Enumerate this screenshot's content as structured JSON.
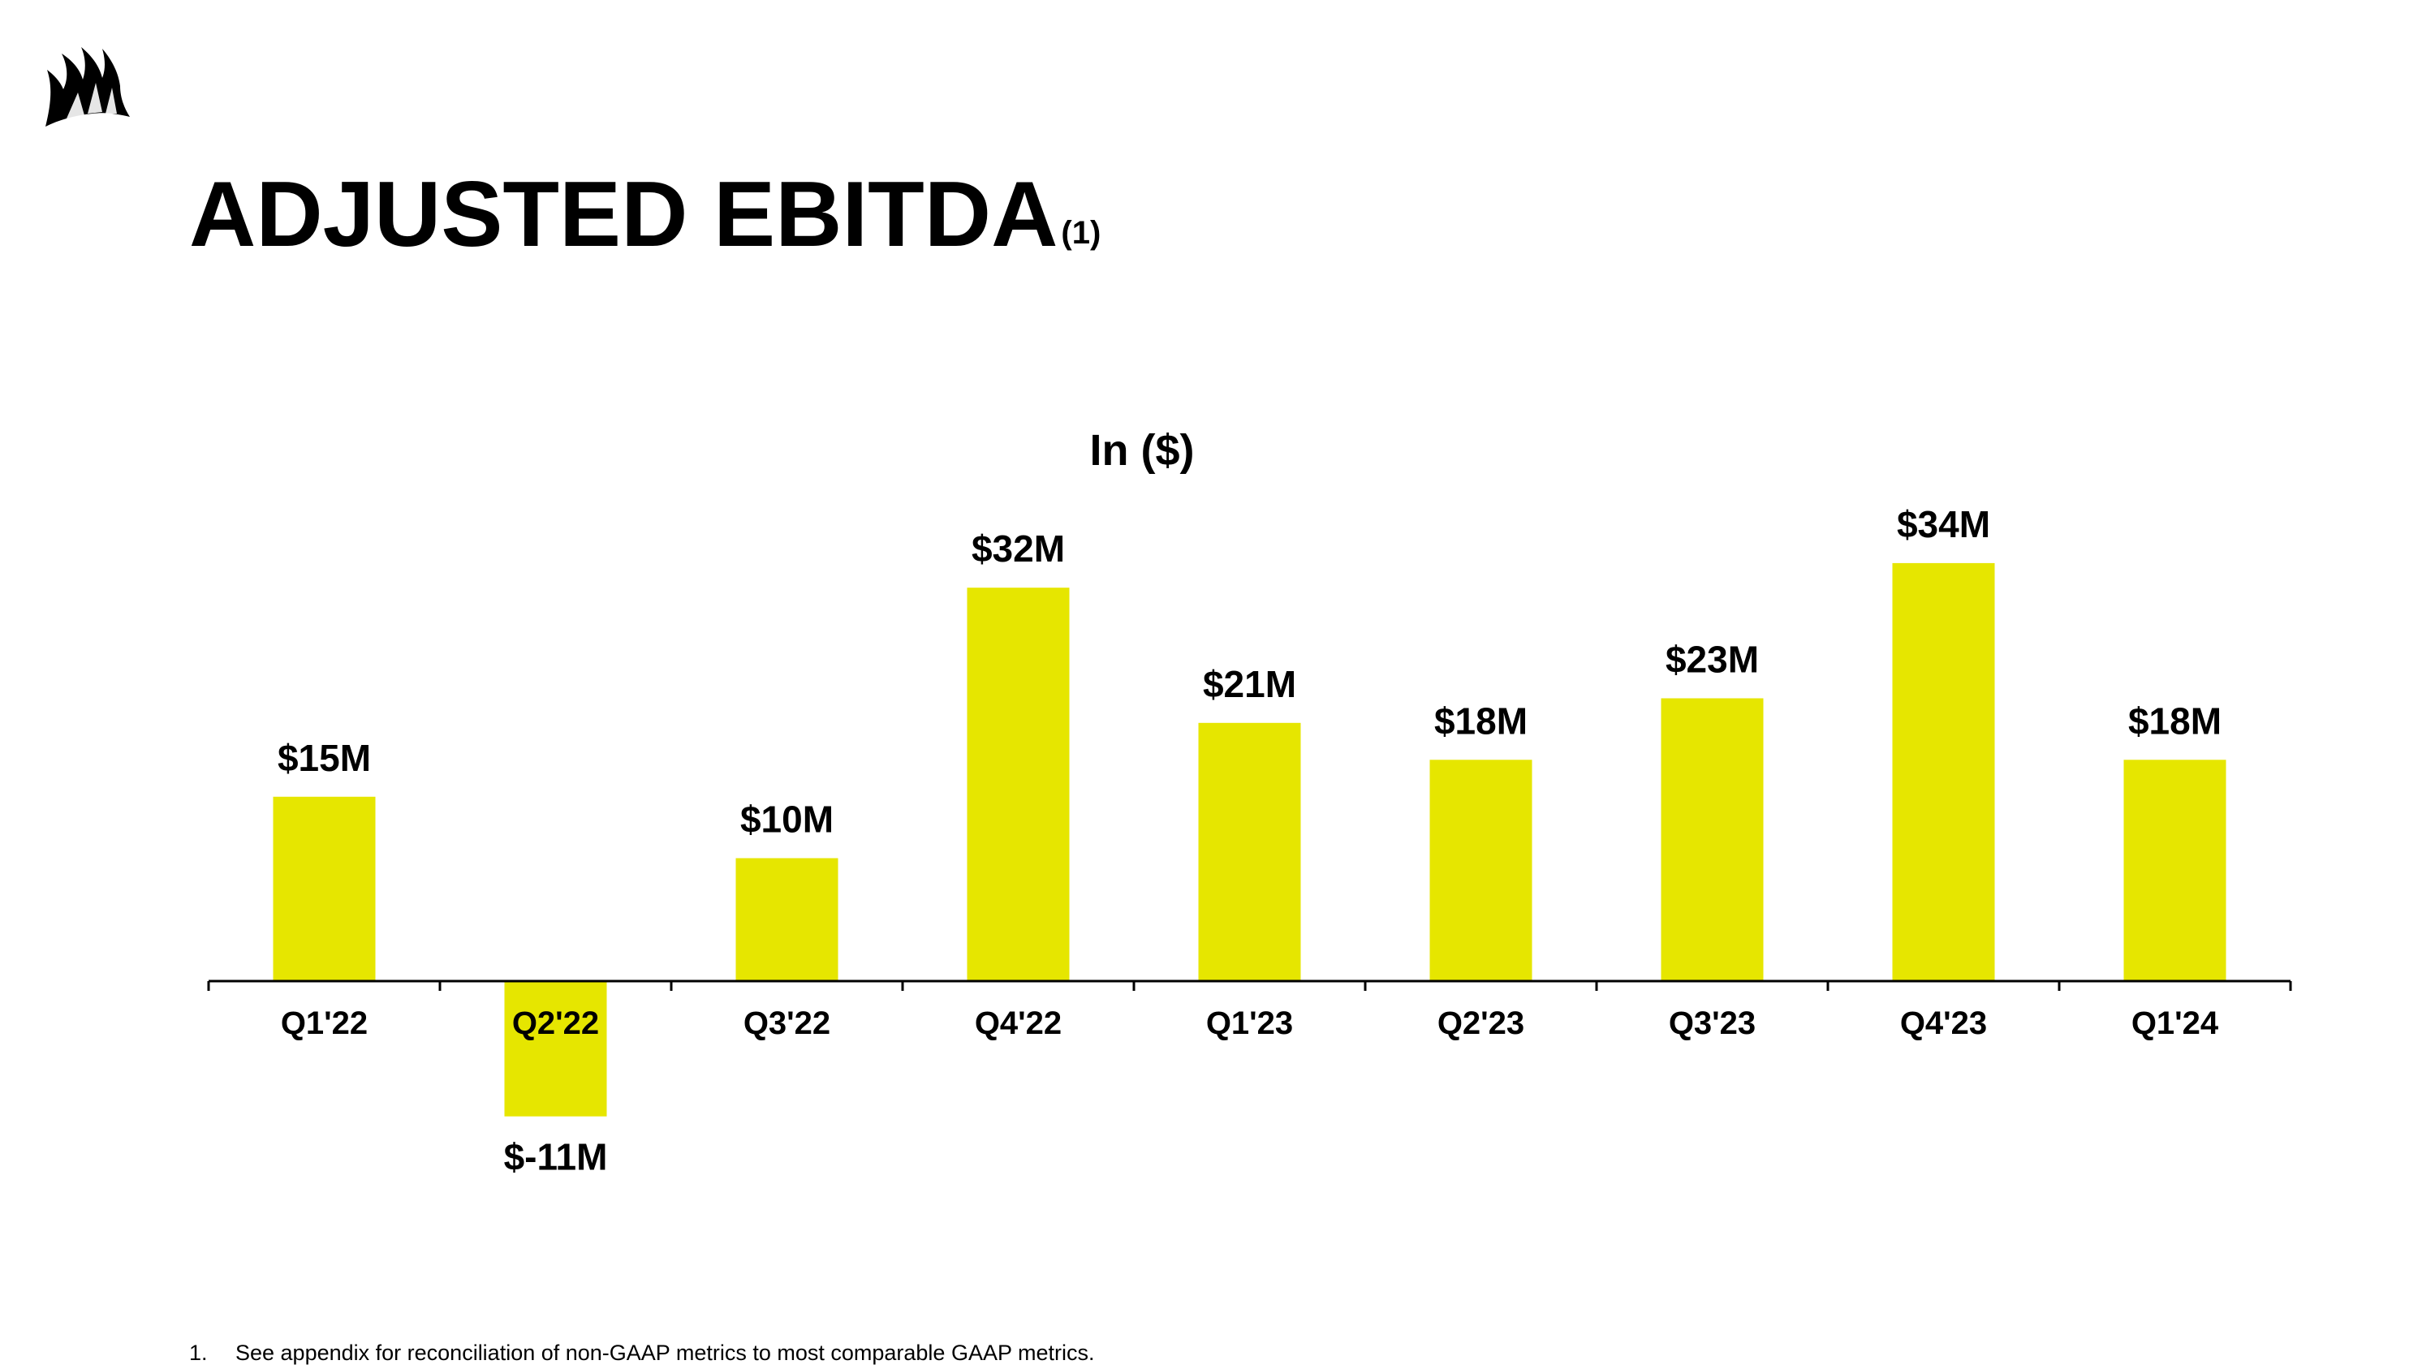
{
  "slide": {
    "title": "ADJUSTED EBITDA",
    "title_superscript": "(1)",
    "logo_icon": "sail-logo-icon",
    "footnote_number": "1.",
    "footnote_text": "See appendix for reconciliation of non-GAAP metrics to most comparable GAAP metrics."
  },
  "colors": {
    "bar": "#E6E600",
    "axis": "#000000",
    "text": "#000000"
  },
  "chart_data": {
    "type": "bar",
    "title": "In ($)",
    "xlabel": "",
    "ylabel": "",
    "categories": [
      "Q1'22",
      "Q2'22",
      "Q3'22",
      "Q4'22",
      "Q1'23",
      "Q2'23",
      "Q3'23",
      "Q4'23",
      "Q1'24"
    ],
    "values": [
      15,
      -11,
      10,
      32,
      21,
      18,
      23,
      34,
      18
    ],
    "data_labels": [
      "$15M",
      "$-11M",
      "$10M",
      "$32M",
      "$21M",
      "$18M",
      "$23M",
      "$34M",
      "$18M"
    ],
    "unit": "$M",
    "ylim": [
      -11,
      34
    ],
    "grid": false,
    "legend": "none"
  }
}
